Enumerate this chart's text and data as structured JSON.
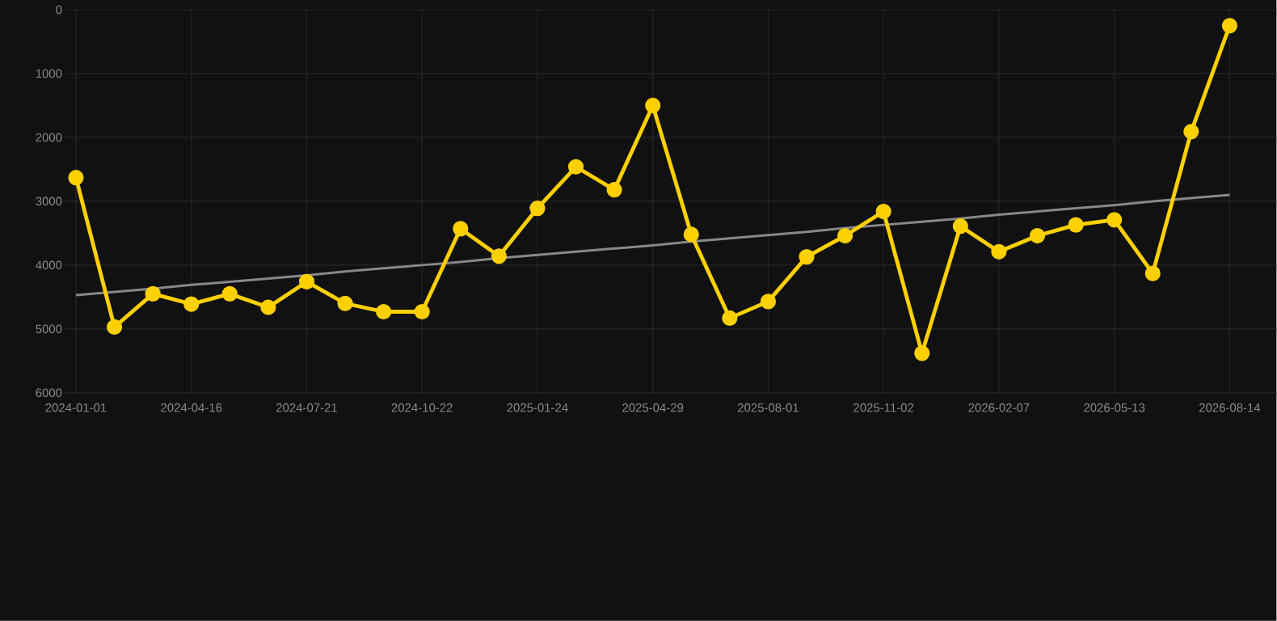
{
  "chart_data": {
    "type": "line",
    "categories": [
      "2024-01-01",
      null,
      null,
      "2024-04-16",
      null,
      null,
      "2024-07-21",
      null,
      null,
      "2024-10-22",
      null,
      null,
      "2025-01-24",
      null,
      null,
      "2025-04-29",
      null,
      null,
      "2025-08-01",
      null,
      null,
      "2025-11-02",
      null,
      null,
      "2026-02-07",
      null,
      null,
      "2026-05-13",
      null,
      null,
      "2026-08-14"
    ],
    "series": [
      {
        "color": "#ffd000",
        "marker": "circle",
        "values": [
          2630,
          4970,
          4450,
          4610,
          4450,
          4660,
          4260,
          4600,
          4730,
          4730,
          3430,
          3860,
          3110,
          2460,
          2820,
          1500,
          3520,
          4830,
          4570,
          3870,
          3540,
          3160,
          5380,
          3390,
          3790,
          3540,
          3370,
          3290,
          4130,
          1910,
          250
        ]
      },
      {
        "type": "line",
        "color": "#888888",
        "marker": "none",
        "values": [
          4470,
          4420,
          4370,
          4310,
          4260,
          4210,
          4160,
          4100,
          4050,
          4000,
          3950,
          3890,
          3840,
          3790,
          3740,
          3690,
          3630,
          3580,
          3530,
          3480,
          3420,
          3370,
          3320,
          3270,
          3210,
          3160,
          3110,
          3060,
          3000,
          2950,
          2900
        ]
      }
    ],
    "ylim": [
      6000,
      0
    ],
    "yticks": [
      0,
      1000,
      2000,
      3000,
      4000,
      5000,
      6000
    ],
    "grid": true
  }
}
